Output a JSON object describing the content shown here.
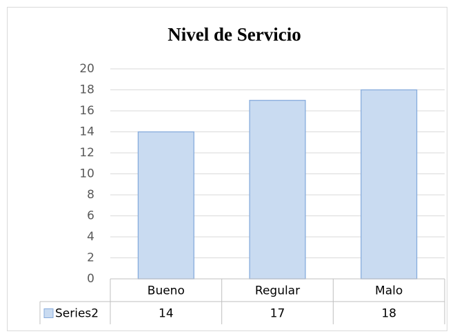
{
  "chart_data": {
    "type": "bar",
    "title": "Nivel de Servicio",
    "categories": [
      "Bueno",
      "Regular",
      "Malo"
    ],
    "series": [
      {
        "name": "Series2",
        "color": "#c9dbf1",
        "edgecolor": "#86abdc",
        "values": [
          14,
          17,
          18
        ]
      }
    ],
    "ylim": [
      0,
      20
    ],
    "yticks": [
      0,
      2,
      4,
      6,
      8,
      10,
      12,
      14,
      16,
      18,
      20
    ],
    "grid": true,
    "data_table": true
  }
}
